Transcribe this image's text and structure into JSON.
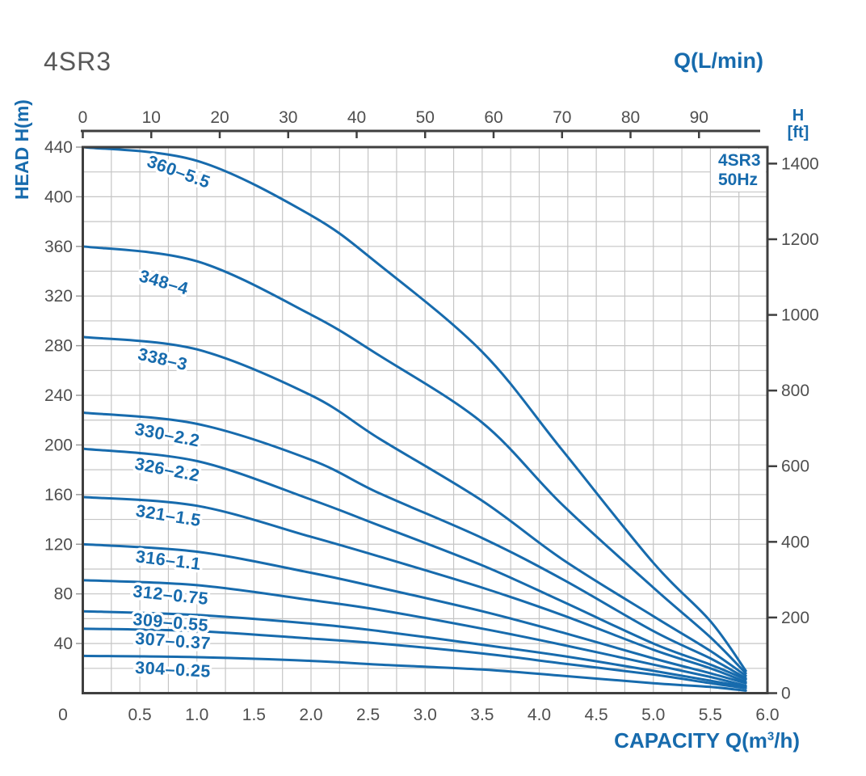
{
  "chart_data": {
    "type": "line",
    "title": "4SR3",
    "legend": {
      "line1": "4SR3",
      "line2": "50Hz",
      "position": "top-right"
    },
    "top_axis": {
      "label": "Q(L/min)",
      "ticks": [
        0,
        10,
        20,
        30,
        40,
        50,
        60,
        70,
        80,
        90
      ],
      "max": 100
    },
    "bottom_axis": {
      "full_label": "CAPACITY Q(m³/h)",
      "label_prefix": "CAPACITY Q(m",
      "label_sup": "3",
      "label_suffix": "/h)",
      "ticks": [
        "0",
        "0.5",
        "1.0",
        "1.5",
        "2.0",
        "2.5",
        "3.0",
        "3.5",
        "4.0",
        "4.5",
        "5.0",
        "5.5",
        "6.0"
      ],
      "max": 6
    },
    "left_axis": {
      "label": "HEAD H(m)",
      "ticks": [
        40,
        80,
        120,
        160,
        200,
        240,
        280,
        320,
        360,
        400,
        440
      ],
      "origin_label": "0",
      "max": 440
    },
    "right_axis": {
      "label_line1": "H",
      "label_line2": "[ft]",
      "ticks": [
        0,
        200,
        400,
        600,
        800,
        1000,
        1200,
        1400
      ]
    },
    "grid": {
      "x_step_m3h": 0.25,
      "y_step_m": 20,
      "on": true
    },
    "colors": {
      "curve": "#176bad",
      "blue_text": "#176bad",
      "grid": "#c5c5c5",
      "axis": "#3f3f3f",
      "tick_text": "#4f4f4f",
      "background": "#ffffff"
    },
    "series": [
      {
        "name": "360–5.5",
        "label_at": [
          0.84,
          420
        ],
        "label_angle": 20,
        "points": [
          [
            0,
            440
          ],
          [
            1,
            429
          ],
          [
            2,
            385
          ],
          [
            2.6,
            345
          ],
          [
            3.5,
            275
          ],
          [
            4.2,
            196
          ],
          [
            5,
            105
          ],
          [
            5.5,
            58
          ],
          [
            5.81,
            18
          ]
        ]
      },
      {
        "name": "348–4",
        "label_at": [
          0.71,
          331
        ],
        "label_angle": 16,
        "points": [
          [
            0,
            360
          ],
          [
            1,
            348
          ],
          [
            2,
            305
          ],
          [
            2.6,
            272
          ],
          [
            3.5,
            218
          ],
          [
            4.2,
            152
          ],
          [
            5,
            85
          ],
          [
            5.5,
            45
          ],
          [
            5.81,
            16
          ]
        ]
      },
      {
        "name": "338–3",
        "label_at": [
          0.7,
          269
        ],
        "label_angle": 13,
        "points": [
          [
            0,
            287
          ],
          [
            1,
            277
          ],
          [
            2,
            240
          ],
          [
            2.6,
            205
          ],
          [
            3.5,
            155
          ],
          [
            4.2,
            108
          ],
          [
            5,
            62
          ],
          [
            5.5,
            34
          ],
          [
            5.81,
            14
          ]
        ]
      },
      {
        "name": "330–2.2",
        "label_at": [
          0.74,
          208
        ],
        "label_angle": 11,
        "points": [
          [
            0,
            226
          ],
          [
            1,
            217
          ],
          [
            2,
            188
          ],
          [
            2.6,
            161
          ],
          [
            3.5,
            125
          ],
          [
            4.2,
            92
          ],
          [
            5,
            50
          ],
          [
            5.5,
            28
          ],
          [
            5.81,
            12
          ]
        ]
      },
      {
        "name": "326–2.2",
        "label_at": [
          0.74,
          180
        ],
        "label_angle": 11,
        "points": [
          [
            0,
            197
          ],
          [
            1,
            187
          ],
          [
            2,
            156
          ],
          [
            2.6,
            135
          ],
          [
            3.5,
            103
          ],
          [
            4.2,
            74
          ],
          [
            5,
            40
          ],
          [
            5.5,
            23
          ],
          [
            5.81,
            11
          ]
        ]
      },
      {
        "name": "321–1.5",
        "label_at": [
          0.75,
          143
        ],
        "label_angle": 9,
        "points": [
          [
            0,
            158
          ],
          [
            1,
            151
          ],
          [
            2,
            126
          ],
          [
            2.6,
            110
          ],
          [
            3.5,
            85
          ],
          [
            4.2,
            63
          ],
          [
            5,
            35
          ],
          [
            5.5,
            20
          ],
          [
            5.81,
            9
          ]
        ]
      },
      {
        "name": "316–1.1",
        "label_at": [
          0.75,
          107
        ],
        "label_angle": 7,
        "points": [
          [
            0,
            120
          ],
          [
            1,
            114
          ],
          [
            2,
            97
          ],
          [
            2.6,
            85
          ],
          [
            3.5,
            66
          ],
          [
            4.2,
            49
          ],
          [
            5,
            28
          ],
          [
            5.5,
            16
          ],
          [
            5.81,
            8
          ]
        ]
      },
      {
        "name": "312–0.75",
        "label_at": [
          0.77,
          79
        ],
        "label_angle": 6,
        "points": [
          [
            0,
            91
          ],
          [
            1,
            87
          ],
          [
            2,
            75
          ],
          [
            2.6,
            67
          ],
          [
            3.5,
            52
          ],
          [
            4.2,
            39
          ],
          [
            5,
            23
          ],
          [
            5.5,
            13
          ],
          [
            5.81,
            6
          ]
        ]
      },
      {
        "name": "309–0.55",
        "label_at": [
          0.77,
          57
        ],
        "label_angle": 5,
        "points": [
          [
            0,
            66
          ],
          [
            1,
            63
          ],
          [
            2,
            56
          ],
          [
            2.6,
            50
          ],
          [
            3.5,
            39
          ],
          [
            4.2,
            30
          ],
          [
            5,
            18
          ],
          [
            5.5,
            10
          ],
          [
            5.81,
            5
          ]
        ]
      },
      {
        "name": "307–0.37",
        "label_at": [
          0.79,
          42
        ],
        "label_angle": 4,
        "points": [
          [
            0,
            52
          ],
          [
            1,
            50
          ],
          [
            2,
            44
          ],
          [
            2.6,
            40
          ],
          [
            3.5,
            32
          ],
          [
            4.2,
            24
          ],
          [
            5,
            15
          ],
          [
            5.5,
            8
          ],
          [
            5.81,
            4
          ]
        ]
      },
      {
        "name": "304–0.25",
        "label_at": [
          0.79,
          19
        ],
        "label_angle": 3,
        "points": [
          [
            0,
            30
          ],
          [
            1,
            29
          ],
          [
            2,
            26
          ],
          [
            2.6,
            23
          ],
          [
            3.5,
            19
          ],
          [
            4.2,
            14
          ],
          [
            5,
            8
          ],
          [
            5.5,
            5
          ],
          [
            5.81,
            2
          ]
        ]
      }
    ]
  }
}
